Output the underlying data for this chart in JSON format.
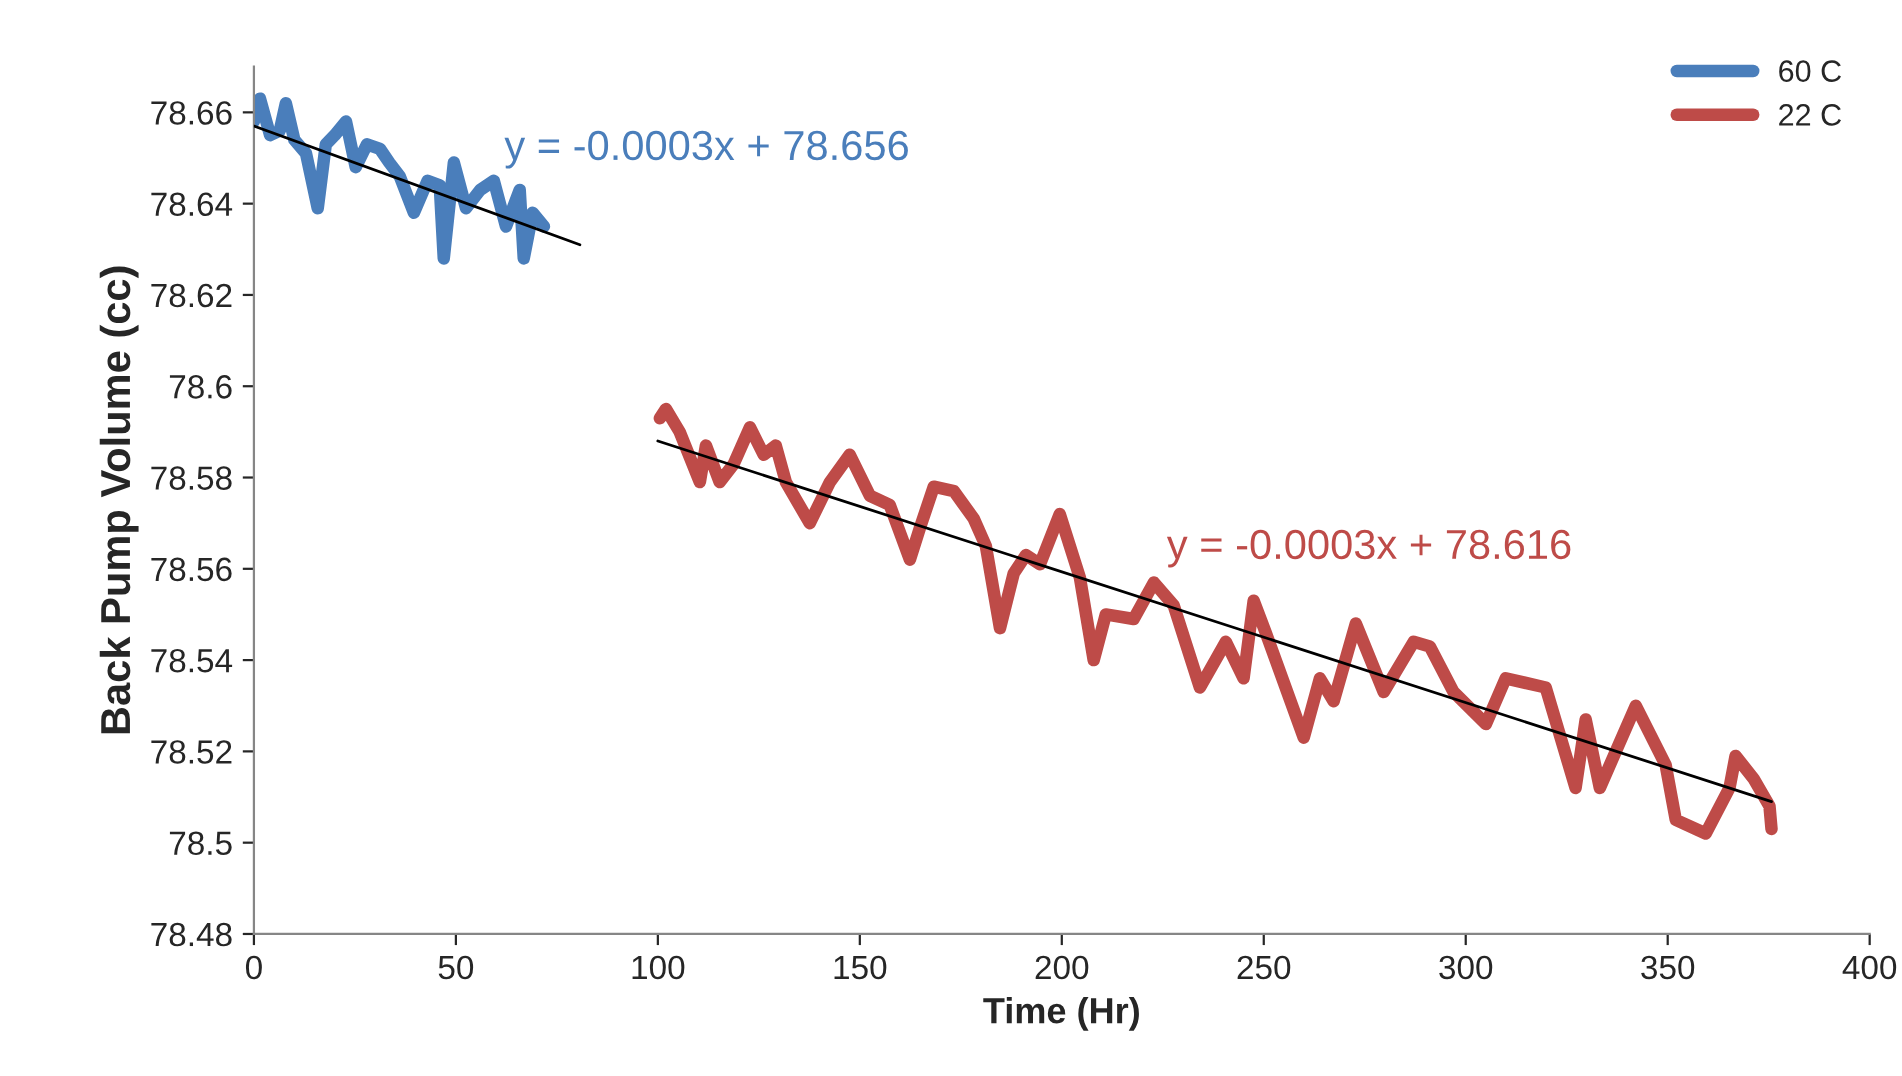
{
  "chart_data": {
    "type": "line",
    "xlabel": "Time (Hr)",
    "ylabel": "Back Pump Volume (cc)",
    "xlim": [
      0,
      400
    ],
    "xticks": [
      0,
      50,
      100,
      150,
      200,
      250,
      300,
      350,
      400
    ],
    "ylim": [
      78.48,
      78.67
    ],
    "yticks": [
      78.48,
      78.5,
      78.52,
      78.54,
      78.56,
      78.58,
      78.6,
      78.62,
      78.64,
      78.66
    ],
    "grid": false,
    "legend": "top right",
    "line_style": "solid",
    "marker": "none",
    "series": [
      {
        "name": "60 C",
        "color": "#4a7ebb",
        "x": [
          0,
          1.5,
          4,
          6.4,
          7.9,
          10,
          12.9,
          15.8,
          17.8,
          20,
          22.8,
          25.2,
          28,
          31.2,
          33.5,
          36.1,
          39.6,
          43,
          46,
          47,
          49.5,
          52.5,
          56,
          59.4,
          62.4,
          65.8,
          66.8,
          69,
          71.8
        ],
        "values": [
          78.658,
          78.663,
          78.655,
          78.656,
          78.662,
          78.654,
          78.651,
          78.639,
          78.653,
          78.655,
          78.658,
          78.648,
          78.653,
          78.652,
          78.649,
          78.646,
          78.638,
          78.645,
          78.644,
          78.628,
          78.649,
          78.639,
          78.643,
          78.645,
          78.635,
          78.643,
          78.628,
          78.638,
          78.635
        ]
      },
      {
        "name": "22 C",
        "color": "#be4b48",
        "x": [
          100.5,
          102,
          105.4,
          110.4,
          111.9,
          115.3,
          118.8,
          122.8,
          126.2,
          129.2,
          131.7,
          137.6,
          142.6,
          147.5,
          152.5,
          157.4,
          162.4,
          164.9,
          168.3,
          173.3,
          178.2,
          181.2,
          184.7,
          188.1,
          191.1,
          194.6,
          199.5,
          204.5,
          207.9,
          210.9,
          217.8,
          222.8,
          227.7,
          234.2,
          240.6,
          245,
          247.5,
          250.5,
          259.9,
          263.9,
          267.3,
          272.8,
          279.7,
          287.1,
          291.1,
          297,
          305,
          309.9,
          319.8,
          327.2,
          329.7,
          333.2,
          342.1,
          349.5,
          352,
          359.4,
          365.3,
          366.8,
          371.3,
          375.2,
          375.7
        ],
        "values": [
          78.593,
          78.595,
          78.59,
          78.579,
          78.587,
          78.579,
          78.583,
          78.591,
          78.585,
          78.587,
          78.579,
          78.57,
          78.579,
          78.585,
          78.576,
          78.574,
          78.562,
          78.569,
          78.578,
          78.577,
          78.571,
          78.565,
          78.547,
          78.559,
          78.563,
          78.561,
          78.572,
          78.558,
          78.54,
          78.55,
          78.549,
          78.557,
          78.552,
          78.534,
          78.544,
          78.536,
          78.553,
          78.546,
          78.523,
          78.536,
          78.531,
          78.548,
          78.533,
          78.544,
          78.543,
          78.533,
          78.526,
          78.536,
          78.534,
          78.512,
          78.527,
          78.512,
          78.53,
          78.517,
          78.505,
          78.502,
          78.512,
          78.519,
          78.514,
          78.508,
          78.503
        ]
      },
      {
        "type": "line",
        "color": "#000000",
        "x": [
          0,
          80.7
        ],
        "values": [
          78.657,
          78.631
        ]
      },
      {
        "type": "line",
        "color": "#000000",
        "x": [
          100,
          375.7
        ],
        "values": [
          78.588,
          78.509
        ]
      }
    ],
    "annotations": [
      "y = -0.0003x + 78.656",
      "y = -0.0003x + 78.616"
    ]
  }
}
